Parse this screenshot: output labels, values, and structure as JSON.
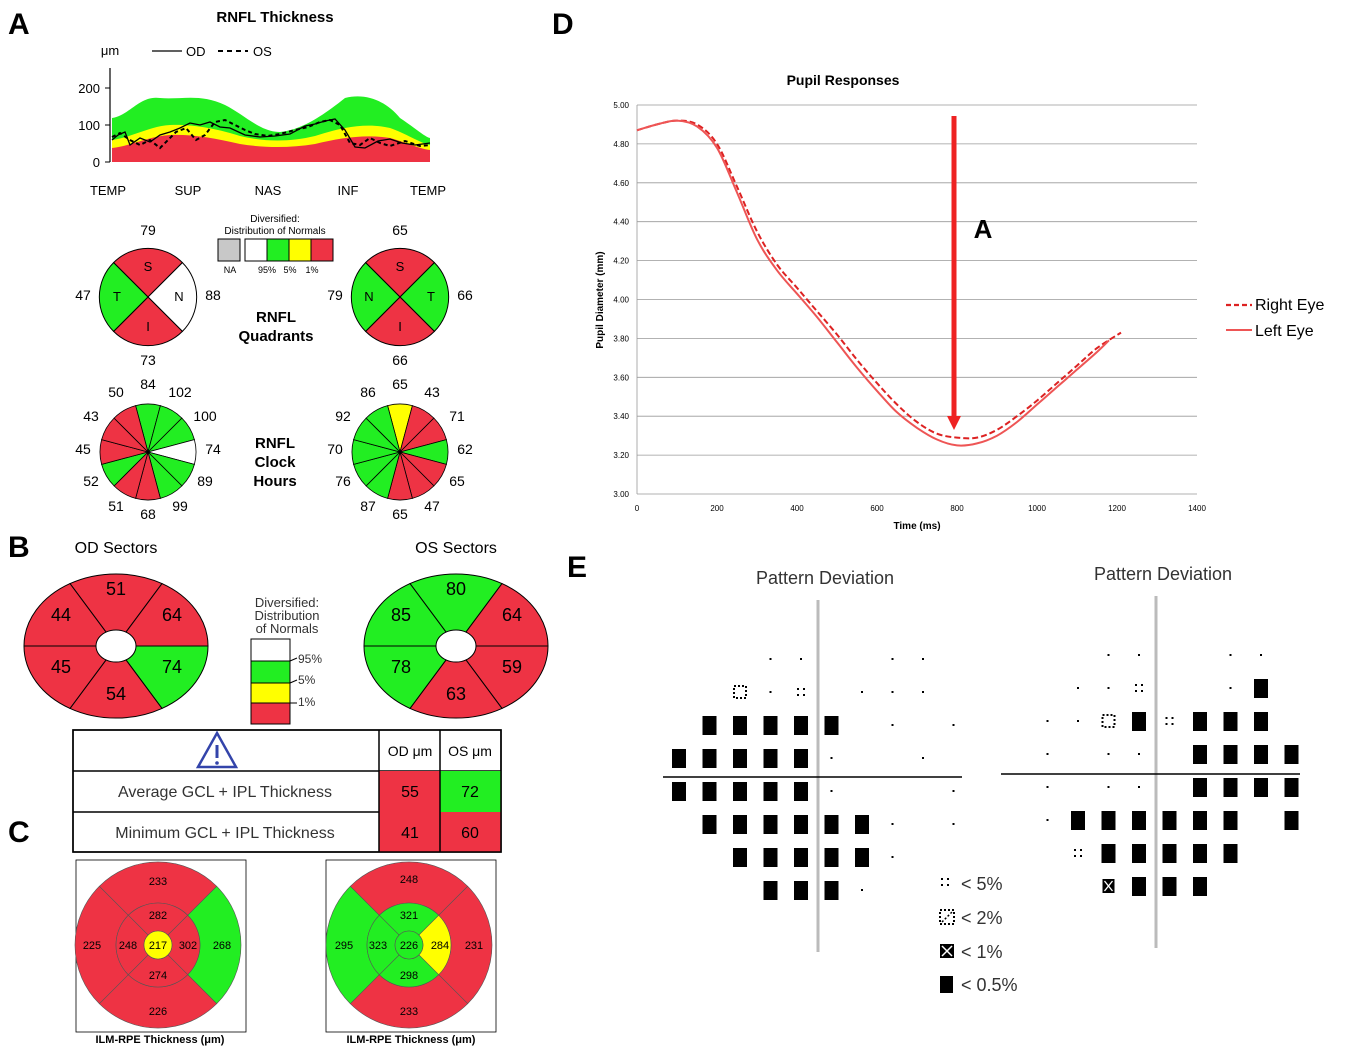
{
  "panel_letters": {
    "a": "A",
    "b": "B",
    "c": "C",
    "d": "D",
    "e": "E"
  },
  "colors": {
    "green": "#22ee22",
    "red": "#ee3344",
    "yellow": "#ffff00",
    "gray": "#c8c8c8",
    "white": "#ffffff"
  },
  "panel_a": {
    "title": "RNFL Thickness",
    "unit": "μm",
    "legend_od": "OD",
    "legend_os": "OS",
    "y_ticks": [
      "200",
      "100",
      "0"
    ],
    "x_labels": [
      "TEMP",
      "SUP",
      "NAS",
      "INF",
      "TEMP"
    ],
    "norm_title_1": "Diversified:",
    "norm_title_2": "Distribution of Normals",
    "norm_labels": [
      "NA",
      "95%",
      "5%",
      "1%"
    ],
    "quad_label_1": "RNFL",
    "quad_label_2": "Quadrants",
    "clock_label_1": "RNFL",
    "clock_label_2": "Clock",
    "clock_label_3": "Hours",
    "od_quadrants": {
      "top": "79",
      "left": "47",
      "right": "88",
      "bottom": "73",
      "letters": [
        "S",
        "N",
        "I",
        "T"
      ]
    },
    "os_quadrants": {
      "top": "65",
      "left": "79",
      "right": "66",
      "bottom": "66",
      "letters": [
        "S",
        "T",
        "I",
        "N"
      ]
    },
    "od_clock": [
      "84",
      "102",
      "100",
      "74",
      "89",
      "99",
      "68",
      "51",
      "52",
      "45",
      "43",
      "50"
    ],
    "os_clock": [
      "65",
      "43",
      "71",
      "62",
      "65",
      "47",
      "65",
      "87",
      "76",
      "70",
      "92",
      "86"
    ]
  },
  "panel_b": {
    "od_title": "OD Sectors",
    "os_title": "OS Sectors",
    "od_sectors": [
      "51",
      "64",
      "74",
      "54",
      "45",
      "44"
    ],
    "os_sectors": [
      "80",
      "64",
      "59",
      "63",
      "78",
      "85"
    ],
    "legend_title_1": "Diversified:",
    "legend_title_2": "Distribution",
    "legend_title_3": "of Normals",
    "legend_labels": [
      "95%",
      "5%",
      "1%"
    ]
  },
  "gcl_table": {
    "headers": [
      "OD μm",
      "OS μm"
    ],
    "rows": [
      {
        "label": "Average GCL + IPL Thickness",
        "od": "55",
        "os": "72"
      },
      {
        "label": "Minimum GCL + IPL Thickness",
        "od": "41",
        "os": "60"
      }
    ]
  },
  "panel_c": {
    "caption": "ILM-RPE Thickness (μm)",
    "od": {
      "outer": [
        "233",
        "268",
        "226",
        "225"
      ],
      "inner": [
        "282",
        "302",
        "274",
        "248"
      ],
      "center": "217"
    },
    "os": {
      "outer": [
        "248",
        "231",
        "233",
        "295"
      ],
      "inner": [
        "321",
        "284",
        "298",
        "323"
      ],
      "center": "226"
    }
  },
  "chart_data": {
    "type": "line",
    "title": "Pupil Responses",
    "xlabel": "Time (ms)",
    "ylabel": "Pupil Diameter (mm)",
    "xlim": [
      0,
      1400
    ],
    "ylim": [
      3.0,
      5.0
    ],
    "x_ticks": [
      "0",
      "200",
      "400",
      "600",
      "800",
      "1000",
      "1200",
      "1400"
    ],
    "y_ticks": [
      "5.00",
      "4.80",
      "4.60",
      "4.40",
      "4.20",
      "4.00",
      "3.80",
      "3.60",
      "3.40",
      "3.20",
      "3.00"
    ],
    "legend_position": "right",
    "annotation": "A",
    "series": [
      {
        "name": "Right Eye",
        "style": "dashed",
        "color": "#dd2222",
        "points": [
          [
            0,
            4.87
          ],
          [
            50,
            4.9
          ],
          [
            100,
            4.92
          ],
          [
            150,
            4.9
          ],
          [
            200,
            4.8
          ],
          [
            250,
            4.58
          ],
          [
            300,
            4.35
          ],
          [
            350,
            4.18
          ],
          [
            400,
            4.06
          ],
          [
            450,
            3.94
          ],
          [
            500,
            3.82
          ],
          [
            550,
            3.69
          ],
          [
            600,
            3.57
          ],
          [
            650,
            3.46
          ],
          [
            700,
            3.37
          ],
          [
            750,
            3.31
          ],
          [
            800,
            3.29
          ],
          [
            850,
            3.29
          ],
          [
            900,
            3.33
          ],
          [
            950,
            3.4
          ],
          [
            1000,
            3.48
          ],
          [
            1050,
            3.57
          ],
          [
            1100,
            3.66
          ],
          [
            1150,
            3.75
          ],
          [
            1210,
            3.83
          ]
        ]
      },
      {
        "name": "Left Eye",
        "style": "solid",
        "color": "#ee5555",
        "points": [
          [
            0,
            4.87
          ],
          [
            50,
            4.9
          ],
          [
            100,
            4.92
          ],
          [
            150,
            4.89
          ],
          [
            200,
            4.78
          ],
          [
            250,
            4.55
          ],
          [
            300,
            4.31
          ],
          [
            350,
            4.15
          ],
          [
            400,
            4.03
          ],
          [
            450,
            3.91
          ],
          [
            500,
            3.78
          ],
          [
            550,
            3.65
          ],
          [
            600,
            3.53
          ],
          [
            650,
            3.42
          ],
          [
            700,
            3.34
          ],
          [
            750,
            3.28
          ],
          [
            800,
            3.25
          ],
          [
            850,
            3.26
          ],
          [
            900,
            3.3
          ],
          [
            950,
            3.37
          ],
          [
            1000,
            3.46
          ],
          [
            1050,
            3.55
          ],
          [
            1100,
            3.64
          ],
          [
            1150,
            3.73
          ],
          [
            1180,
            3.79
          ]
        ]
      }
    ]
  },
  "panel_e": {
    "title_left": "Pattern Deviation",
    "title_right": "Pattern Deviation",
    "legend": [
      "< 5%",
      "< 2%",
      "< 1%",
      "< 0.5%"
    ]
  }
}
